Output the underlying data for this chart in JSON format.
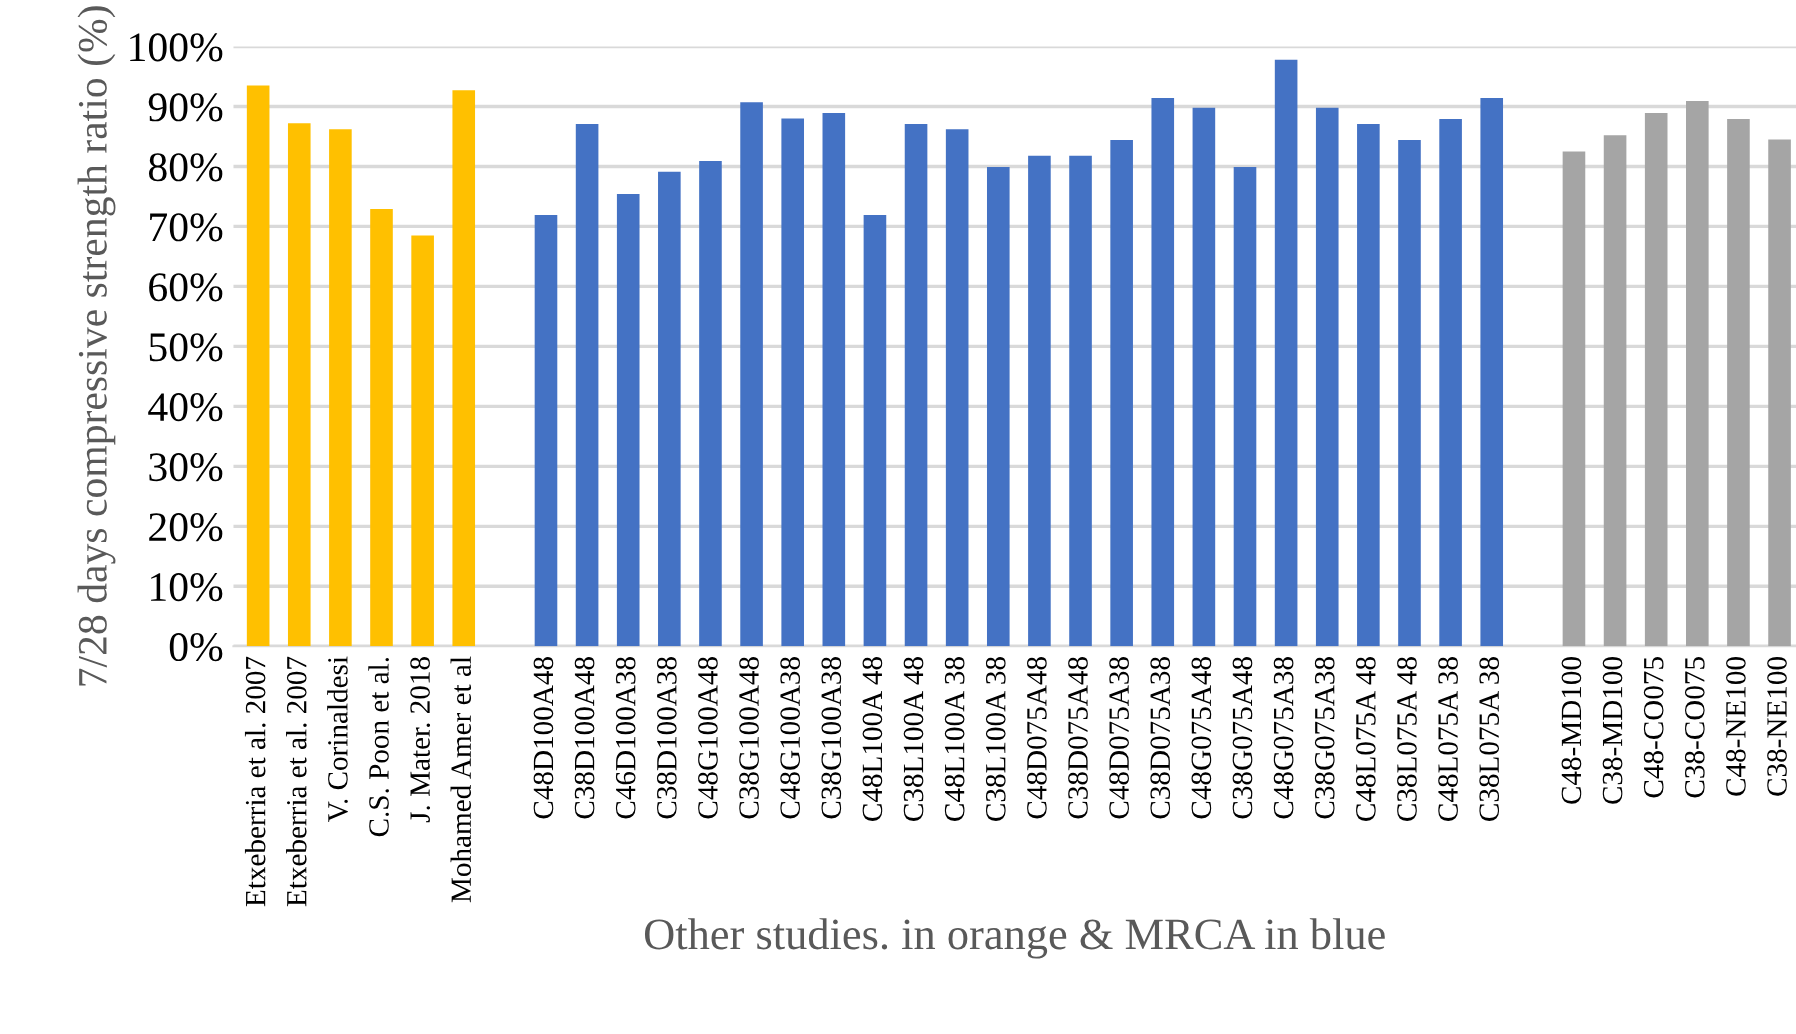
{
  "chart_data": {
    "type": "bar",
    "xlabel": "Other studies. in orange & MRCA in blue",
    "ylabel": "7/28 days compressive strength ratio (%)",
    "categories": [
      "Etxeberria et al. 2007",
      "Etxeberria et al. 2007",
      "V. Corinaldesi",
      "C.S. Poon et al.",
      "J. Mater. 2018",
      "Mohamed Amer et al",
      null,
      "C48D100A48",
      "C38D100A48",
      "C46D100A38",
      "C38D100A38",
      "C48G100A48",
      "C38G100A48",
      "C48G100A38",
      "C38G100A38",
      "C48L100A 48",
      "C38L100A 48",
      "C48L100A 38",
      "C38L100A 38",
      "C48D075A48",
      "C38D075A48",
      "C48D075A38",
      "C38D075A38",
      "C48G075A48",
      "C38G075A48",
      "C48G075A38",
      "C38G075A38",
      "C48L075A 48",
      "C38L075A 48",
      "C48L075A 38",
      "C38L075A 38",
      null,
      "C48-MD100",
      "C38-MD100",
      "C48-CO075",
      "C38-CO075",
      "C48-NE100",
      "C38-NE100"
    ],
    "values": [
      93.5,
      87.2,
      86.2,
      72.9,
      68.5,
      92.7,
      null,
      71.9,
      87.1,
      75.4,
      79.1,
      80.9,
      90.7,
      88.0,
      88.9,
      71.9,
      87.1,
      86.2,
      79.9,
      81.8,
      81.8,
      84.4,
      91.4,
      89.8,
      79.9,
      97.8,
      89.8,
      87.1,
      84.4,
      87.9,
      91.4,
      null,
      82.5,
      85.2,
      88.9,
      90.9,
      87.9,
      84.5
    ],
    "colors": [
      "#ffc000",
      "#ffc000",
      "#ffc000",
      "#ffc000",
      "#ffc000",
      "#ffc000",
      null,
      "#4472c4",
      "#4472c4",
      "#4472c4",
      "#4472c4",
      "#4472c4",
      "#4472c4",
      "#4472c4",
      "#4472c4",
      "#4472c4",
      "#4472c4",
      "#4472c4",
      "#4472c4",
      "#4472c4",
      "#4472c4",
      "#4472c4",
      "#4472c4",
      "#4472c4",
      "#4472c4",
      "#4472c4",
      "#4472c4",
      "#4472c4",
      "#4472c4",
      "#4472c4",
      "#4472c4",
      null,
      "#a5a5a5",
      "#a5a5a5",
      "#a5a5a5",
      "#a5a5a5",
      "#a5a5a5",
      "#a5a5a5"
    ],
    "ylim": [
      0,
      100
    ],
    "yticks": [
      {
        "value": 0,
        "label": "0%"
      },
      {
        "value": 10,
        "label": "10%"
      },
      {
        "value": 20,
        "label": "20%"
      },
      {
        "value": 30,
        "label": "30%"
      },
      {
        "value": 40,
        "label": "40%"
      },
      {
        "value": 50,
        "label": "50%"
      },
      {
        "value": 60,
        "label": "60%"
      },
      {
        "value": 70,
        "label": "70%"
      },
      {
        "value": 80,
        "label": "80%"
      },
      {
        "value": 90,
        "label": "90%"
      },
      {
        "value": 100,
        "label": "100%"
      }
    ],
    "grid": "y",
    "legend": false
  }
}
